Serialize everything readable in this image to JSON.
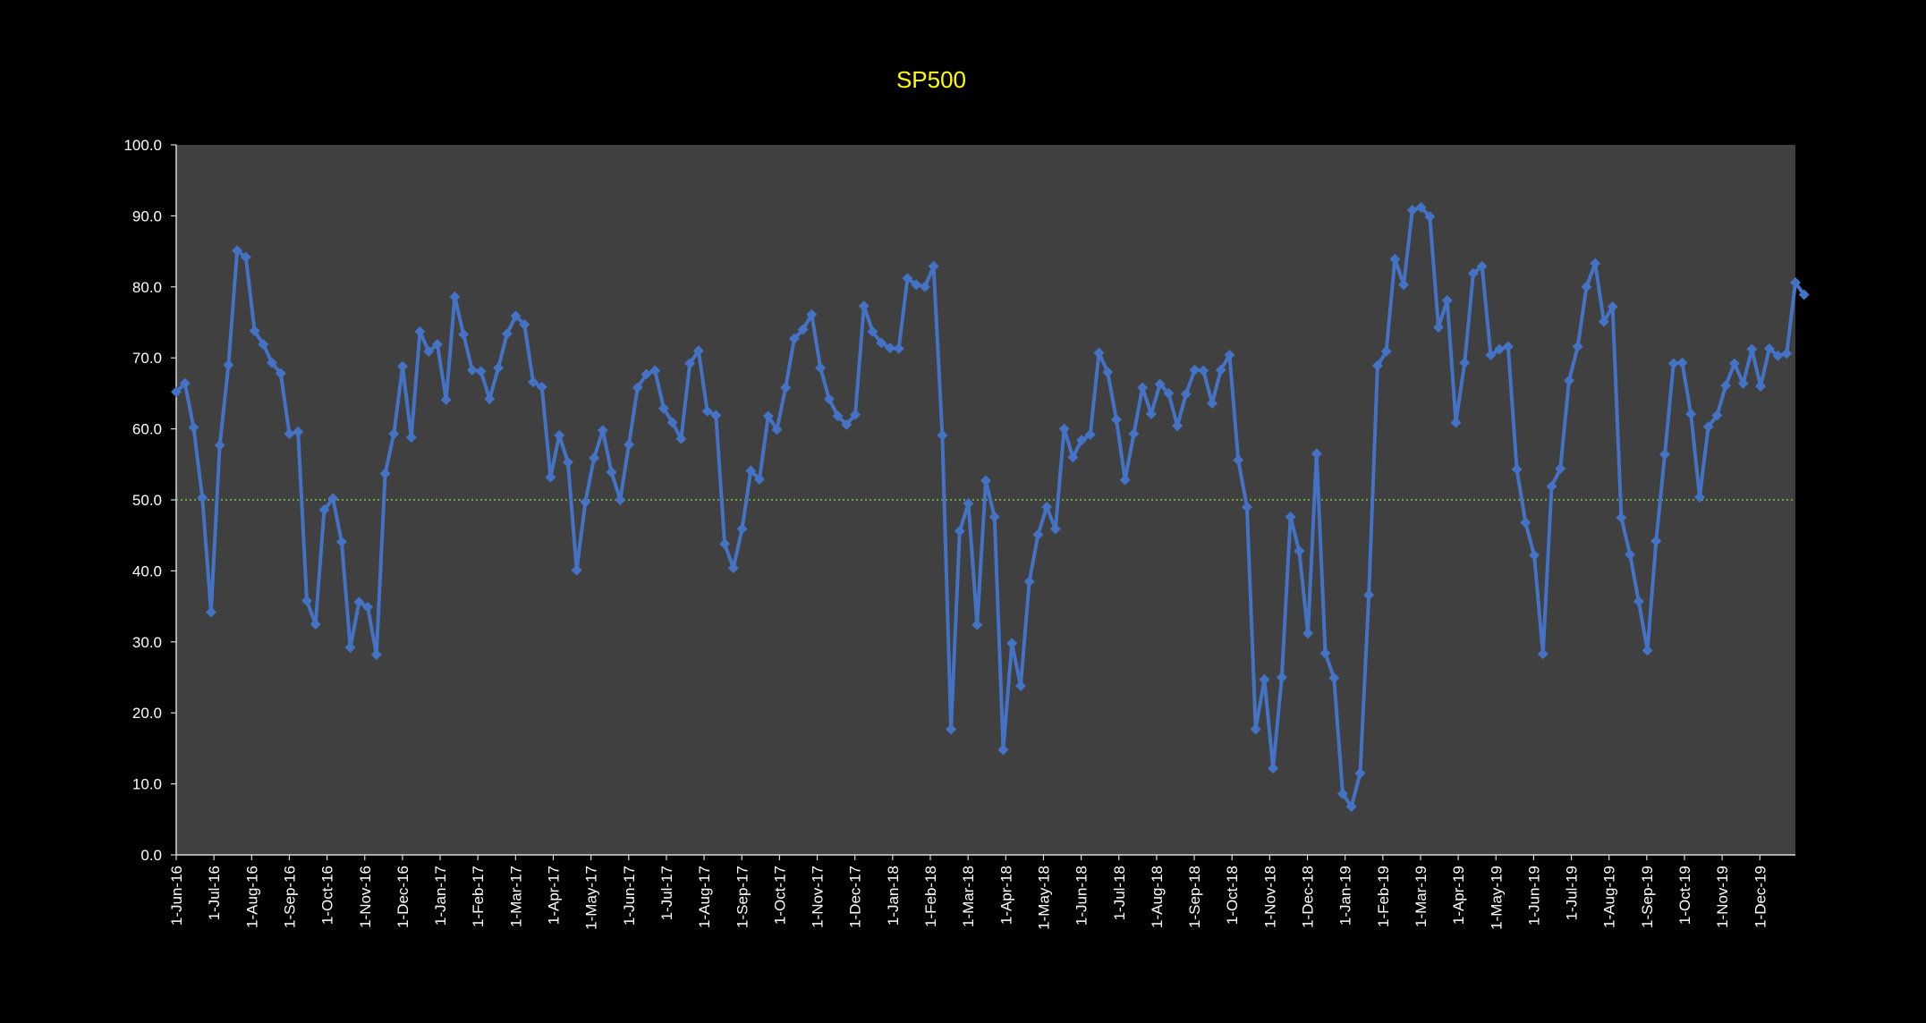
{
  "chart_data": {
    "type": "line",
    "title": "SP500",
    "xlabel": "",
    "ylabel": "",
    "ylim": [
      0,
      100
    ],
    "y_ticks": [
      "0.0",
      "10.0",
      "20.0",
      "30.0",
      "40.0",
      "50.0",
      "60.0",
      "70.0",
      "80.0",
      "90.0",
      "100.0"
    ],
    "x_ticks": [
      "1-Jun-16",
      "1-Jul-16",
      "1-Aug-16",
      "1-Sep-16",
      "1-Oct-16",
      "1-Nov-16",
      "1-Dec-16",
      "1-Jan-17",
      "1-Feb-17",
      "1-Mar-17",
      "1-Apr-17",
      "1-May-17",
      "1-Jun-17",
      "1-Jul-17",
      "1-Aug-17",
      "1-Sep-17",
      "1-Oct-17",
      "1-Nov-17",
      "1-Dec-17",
      "1-Jan-18",
      "1-Feb-18",
      "1-Mar-18",
      "1-Apr-18",
      "1-May-18",
      "1-Jun-18",
      "1-Jul-18",
      "1-Aug-18",
      "1-Sep-18",
      "1-Oct-18",
      "1-Nov-18",
      "1-Dec-18",
      "1-Jan-19",
      "1-Feb-19",
      "1-Mar-19",
      "1-Apr-19",
      "1-May-19",
      "1-Jun-19",
      "1-Jul-19",
      "1-Aug-19",
      "1-Sep-19",
      "1-Oct-19",
      "1-Nov-19",
      "1-Dec-19"
    ],
    "x_index_range": [
      0,
      186
    ],
    "reference_line": {
      "value": 50,
      "color": "#7cc242",
      "style": "dotted"
    },
    "grid": false,
    "legend": "none",
    "colors": {
      "background": "#000000",
      "plot_area": "#404040",
      "series": "#4472c4",
      "axis": "#d9d9d9",
      "text": "#ffffff",
      "title": "#ffff00"
    },
    "series": [
      {
        "name": "SP500",
        "values": [
          65.2,
          66.4,
          60.2,
          50.3,
          34.2,
          57.7,
          69.0,
          85.1,
          84.2,
          73.8,
          71.9,
          69.3,
          67.8,
          59.3,
          59.6,
          35.8,
          32.5,
          48.6,
          50.2,
          44.1,
          29.2,
          35.6,
          34.9,
          28.2,
          53.7,
          59.3,
          68.8,
          58.8,
          73.7,
          70.9,
          71.9,
          64.1,
          78.6,
          73.3,
          68.3,
          68.1,
          64.2,
          68.6,
          73.4,
          75.9,
          74.7,
          66.6,
          65.9,
          53.2,
          59.1,
          55.3,
          40.1,
          49.7,
          55.9,
          59.8,
          53.9,
          50.0,
          57.8,
          65.8,
          67.7,
          68.2,
          62.9,
          60.9,
          58.6,
          69.2,
          71.0,
          62.5,
          61.9,
          43.8,
          40.4,
          45.9,
          54.1,
          52.9,
          61.8,
          59.9,
          65.8,
          72.7,
          74.0,
          76.1,
          68.6,
          64.2,
          61.8,
          60.6,
          62.0,
          77.3,
          73.7,
          72.1,
          71.4,
          71.3,
          81.2,
          80.3,
          80.0,
          82.9,
          59.1,
          17.7,
          45.6,
          49.5,
          32.4,
          52.7,
          47.6,
          14.8,
          29.8,
          23.8,
          38.5,
          45.1,
          49.0,
          45.9,
          60.0,
          56.0,
          58.4,
          59.2,
          70.7,
          68.0,
          61.3,
          52.8,
          59.3,
          65.8,
          62.1,
          66.3,
          65.0,
          60.4,
          64.9,
          68.3,
          68.2,
          63.6,
          68.3,
          70.4,
          55.6,
          49.0,
          17.7,
          24.7,
          12.2,
          25.0,
          47.6,
          42.8,
          31.2,
          56.5,
          28.4,
          24.9,
          8.6,
          6.8,
          11.5,
          36.6,
          68.9,
          70.9,
          83.9,
          80.3,
          90.8,
          91.2,
          89.9,
          74.3,
          78.1,
          60.9,
          69.3,
          81.9,
          82.9,
          70.4,
          71.2,
          71.6,
          54.3,
          46.8,
          42.2,
          28.3,
          51.9,
          54.4,
          66.8,
          71.6,
          80.0,
          83.3,
          75.1,
          77.2,
          47.5,
          42.3,
          35.7,
          28.8,
          44.2,
          56.4,
          69.2,
          69.3,
          62.1,
          50.4,
          60.3,
          61.9,
          66.1,
          69.2,
          66.4,
          71.2,
          66.0,
          71.3,
          70.3,
          70.6,
          80.6,
          78.9
        ]
      }
    ]
  }
}
